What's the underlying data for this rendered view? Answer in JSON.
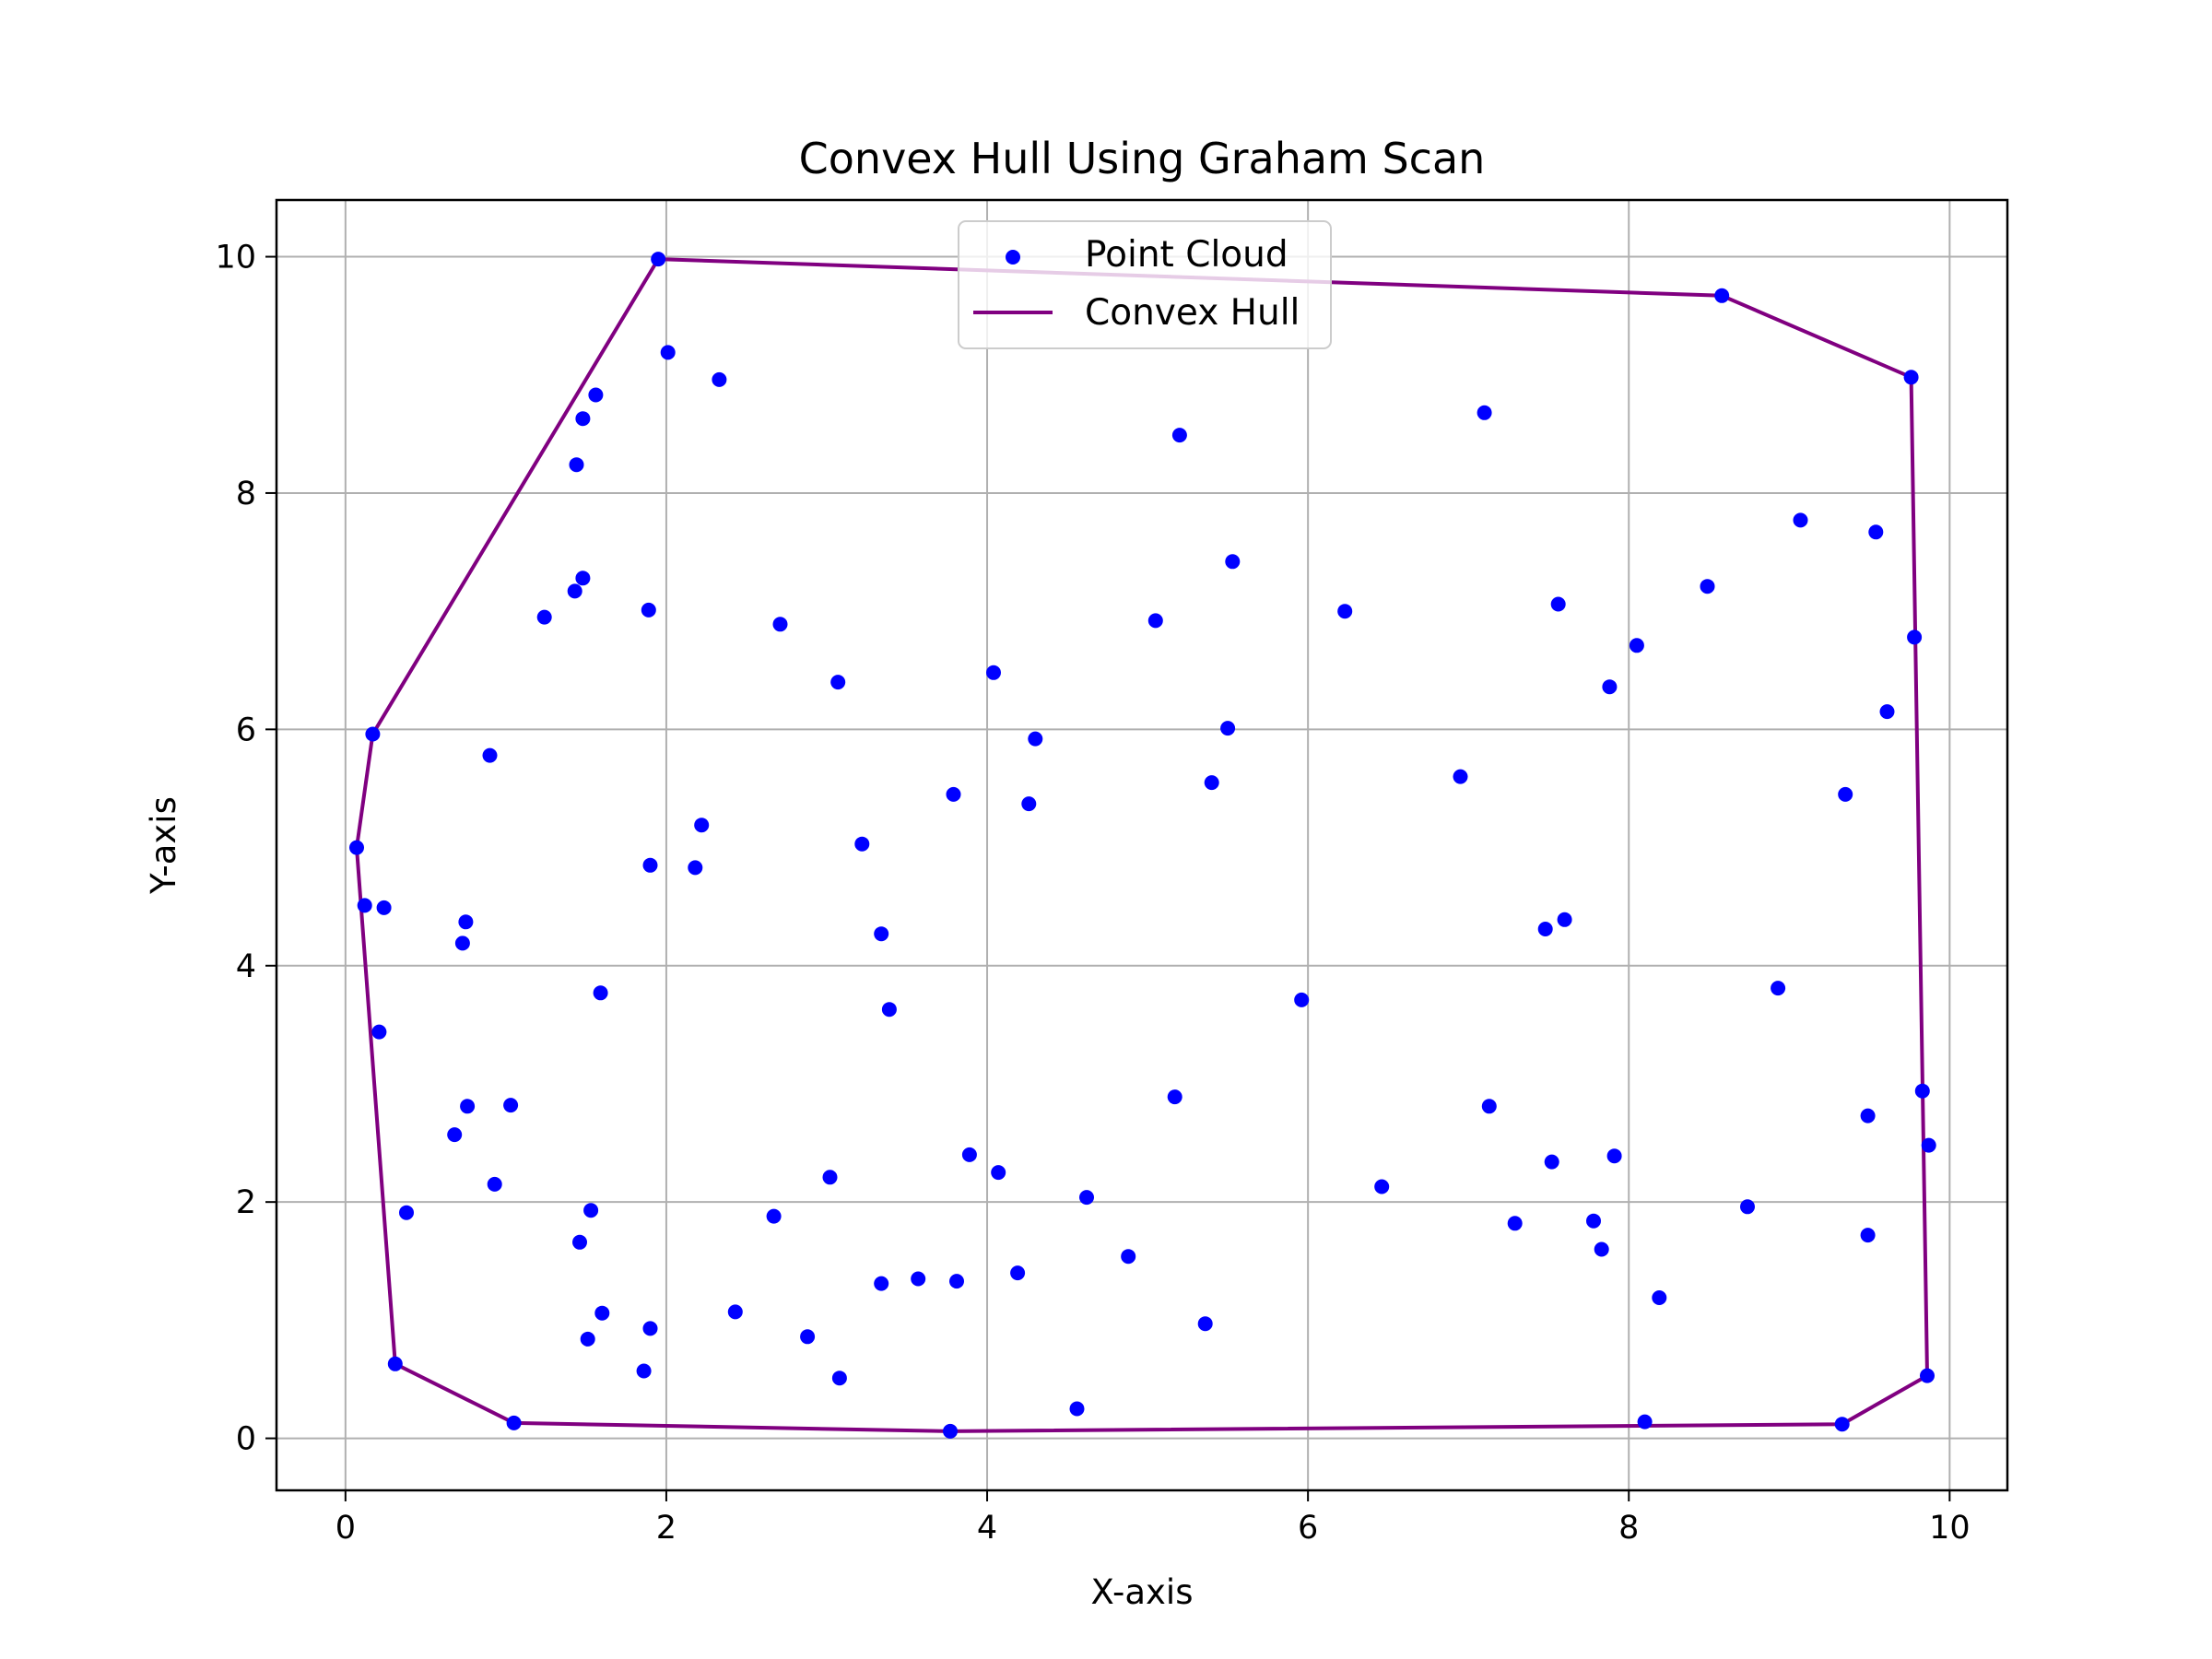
{
  "chart_data": {
    "type": "scatter",
    "title": "Convex Hull Using Graham Scan",
    "xlabel": "X-axis",
    "ylabel": "Y-axis",
    "xlim": [
      -0.43,
      10.36
    ],
    "ylim": [
      -0.44,
      10.48
    ],
    "xticks": [
      0,
      2,
      4,
      6,
      8,
      10
    ],
    "yticks": [
      0,
      2,
      4,
      6,
      8,
      10
    ],
    "grid": true,
    "legend_position": "upper center",
    "series": [
      {
        "name": "Point Cloud",
        "type": "scatter",
        "color": "#0000ff",
        "points": [
          [
            1.95,
            9.98
          ],
          [
            2.01,
            9.19
          ],
          [
            2.33,
            8.96
          ],
          [
            1.56,
            8.83
          ],
          [
            1.48,
            8.63
          ],
          [
            1.44,
            8.24
          ],
          [
            1.48,
            7.28
          ],
          [
            1.43,
            7.17
          ],
          [
            1.24,
            6.95
          ],
          [
            1.89,
            7.01
          ],
          [
            2.71,
            6.89
          ],
          [
            3.07,
            6.4
          ],
          [
            5.2,
            8.49
          ],
          [
            7.1,
            8.68
          ],
          [
            5.53,
            7.42
          ],
          [
            5.05,
            6.92
          ],
          [
            6.23,
            7.0
          ],
          [
            7.56,
            7.06
          ],
          [
            4.04,
            6.48
          ],
          [
            4.3,
            5.92
          ],
          [
            3.79,
            5.45
          ],
          [
            4.26,
            5.37
          ],
          [
            5.5,
            6.01
          ],
          [
            5.4,
            5.55
          ],
          [
            6.95,
            5.6
          ],
          [
            8.05,
            6.71
          ],
          [
            7.88,
            6.36
          ],
          [
            8.49,
            7.21
          ],
          [
            9.07,
            7.77
          ],
          [
            9.54,
            7.67
          ],
          [
            9.78,
            6.78
          ],
          [
            9.61,
            6.15
          ],
          [
            9.35,
            5.45
          ],
          [
            0.17,
            5.96
          ],
          [
            0.9,
            5.78
          ],
          [
            0.07,
            5.0
          ],
          [
            0.12,
            4.51
          ],
          [
            0.24,
            4.49
          ],
          [
            0.75,
            4.37
          ],
          [
            0.73,
            4.19
          ],
          [
            1.9,
            4.85
          ],
          [
            2.22,
            5.19
          ],
          [
            2.18,
            4.83
          ],
          [
            3.22,
            5.03
          ],
          [
            3.34,
            4.27
          ],
          [
            1.59,
            3.77
          ],
          [
            0.21,
            3.44
          ],
          [
            3.39,
            3.63
          ],
          [
            5.96,
            3.71
          ],
          [
            7.48,
            4.31
          ],
          [
            7.6,
            4.39
          ],
          [
            8.93,
            3.81
          ],
          [
            0.76,
            2.81
          ],
          [
            1.03,
            2.82
          ],
          [
            0.68,
            2.57
          ],
          [
            0.93,
            2.15
          ],
          [
            0.38,
            1.91
          ],
          [
            1.53,
            1.93
          ],
          [
            1.46,
            1.66
          ],
          [
            3.02,
            2.21
          ],
          [
            2.67,
            1.88
          ],
          [
            3.89,
            2.4
          ],
          [
            4.07,
            2.25
          ],
          [
            4.62,
            2.04
          ],
          [
            5.17,
            2.89
          ],
          [
            7.13,
            2.81
          ],
          [
            6.46,
            2.13
          ],
          [
            7.52,
            2.34
          ],
          [
            7.91,
            2.39
          ],
          [
            9.83,
            2.94
          ],
          [
            9.49,
            2.73
          ],
          [
            9.87,
            2.48
          ],
          [
            7.29,
            1.82
          ],
          [
            7.78,
            1.84
          ],
          [
            8.74,
            1.96
          ],
          [
            9.49,
            1.72
          ],
          [
            7.83,
            1.6
          ],
          [
            4.88,
            1.54
          ],
          [
            4.19,
            1.4
          ],
          [
            3.57,
            1.35
          ],
          [
            3.34,
            1.31
          ],
          [
            3.81,
            1.33
          ],
          [
            2.43,
            1.07
          ],
          [
            1.6,
            1.06
          ],
          [
            1.9,
            0.93
          ],
          [
            1.51,
            0.84
          ],
          [
            2.88,
            0.86
          ],
          [
            5.36,
            0.97
          ],
          [
            8.19,
            1.19
          ],
          [
            0.31,
            0.63
          ],
          [
            1.86,
            0.57
          ],
          [
            3.08,
            0.51
          ],
          [
            4.56,
            0.25
          ],
          [
            1.05,
            0.13
          ],
          [
            3.77,
            0.06
          ],
          [
            8.1,
            0.14
          ],
          [
            9.33,
            0.12
          ],
          [
            9.86,
            0.53
          ],
          [
            9.76,
            8.98
          ],
          [
            8.58,
            9.67
          ]
        ]
      },
      {
        "name": "Convex Hull",
        "type": "line",
        "color": "#800080",
        "points": [
          [
            1.95,
            9.98
          ],
          [
            8.58,
            9.67
          ],
          [
            9.76,
            8.98
          ],
          [
            9.86,
            0.53
          ],
          [
            9.33,
            0.12
          ],
          [
            3.77,
            0.06
          ],
          [
            1.05,
            0.13
          ],
          [
            0.31,
            0.63
          ],
          [
            0.07,
            5.0
          ],
          [
            0.17,
            5.96
          ],
          [
            1.95,
            9.98
          ]
        ]
      }
    ]
  }
}
